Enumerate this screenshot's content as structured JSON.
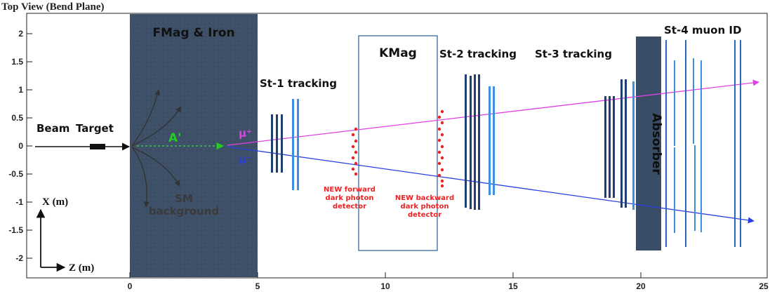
{
  "title": "Top View (Bend Plane)",
  "axes": {
    "x_label": "Z (m)",
    "y_label": "X (m)",
    "x_ticks": [
      "0",
      "5",
      "10",
      "15",
      "20",
      "25"
    ],
    "y_ticks": [
      "2",
      "1.5",
      "1",
      "0.5",
      "0",
      "-0.5",
      "-1",
      "-1.5",
      "-2"
    ]
  },
  "labels": {
    "beam": "Beam",
    "target": "Target",
    "fmag": "FMag & Iron",
    "kmag": "KMag",
    "st1": "St-1 tracking",
    "st2": "St-2 tracking",
    "st3": "St-3 tracking",
    "st4": "St-4 muon ID",
    "absorber": "Absorber",
    "aprime": "A'",
    "mu_plus": "μ⁺",
    "mu_minus": "μ⁻",
    "sm_line1": "SM",
    "sm_line2": "background",
    "fwd_line1": "NEW forward",
    "fwd_line2": "dark photon",
    "fwd_line3": "detector",
    "bwd_line1": "NEW backward",
    "bwd_line2": "dark photon",
    "bwd_line3": "detector"
  },
  "colors": {
    "fmag_fill": "#3e5068",
    "absorber_fill": "#3a4d66",
    "station_dark": "#1f3f73",
    "station_light": "#3c8ede",
    "mu_plus_track": "#e040e6",
    "mu_minus_track": "#2a3fe0",
    "aprime": "#22cc22",
    "dark_photon_detector": "#ee2222"
  }
}
